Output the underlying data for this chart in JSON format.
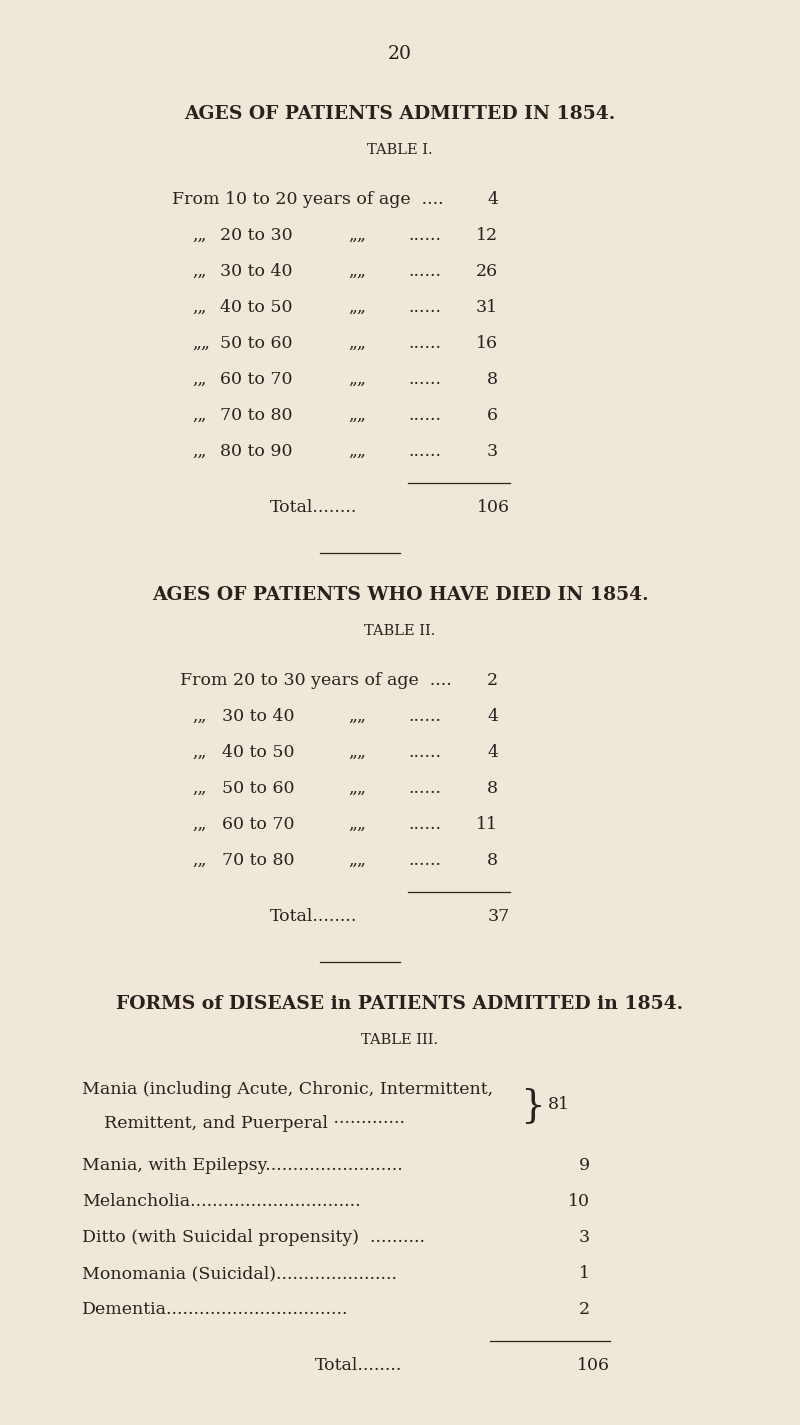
{
  "bg_color": "#ede8d8",
  "text_color": "#2e1f1f",
  "page_number": "20",
  "s1_title": "AGES OF PATIENTS ADMITTED IN 1854.",
  "s1_sub": "TABLE I.",
  "s1_row0": [
    "From 10 to 20 years of age  ....",
    "4"
  ],
  "s1_rows": [
    [
      ",„",
      "20 to 30",
      "„„",
      "......",
      "12"
    ],
    [
      ",„",
      "30 to 40",
      "„„",
      "......",
      "26"
    ],
    [
      ",„",
      "40 to 50",
      "„„",
      "......",
      "31"
    ],
    [
      "„„",
      "50 to 60",
      "„„",
      "......",
      "16"
    ],
    [
      ",„",
      "60 to 70",
      "„„",
      "......",
      "8"
    ],
    [
      ",„",
      "70 to 80",
      "„„",
      "......",
      "6"
    ],
    [
      ",„",
      "80 to 90",
      "„„",
      "......",
      "3"
    ]
  ],
  "s1_total": "106",
  "s2_title": "AGES OF PATIENTS WHO HAVE DIED IN 1854.",
  "s2_sub": "TABLE II.",
  "s2_row0": [
    "From 20 to 30 years of age  ....",
    "2"
  ],
  "s2_rows": [
    [
      ",„",
      "30 to 40",
      "„„",
      "......",
      "4"
    ],
    [
      ",„",
      "40 to 50",
      "„„",
      "......",
      "4"
    ],
    [
      ",„",
      "50 to 60",
      "„„",
      "......",
      "8"
    ],
    [
      ",„",
      "60 to 70",
      "„„",
      "......",
      "11"
    ],
    [
      ",„",
      "70 to 80",
      "„„",
      "......",
      "8"
    ]
  ],
  "s2_total": "37",
  "s3_title": "FORMS of DISEASE in PATIENTS ADMITTED in 1854.",
  "s3_sub": "TABLE III.",
  "s3_mania_line1": "Mania (including Acute, Chronic, Intermittent,",
  "s3_mania_line2": "    Remittent, and Puerperal ·············",
  "s3_mania_val": "81",
  "s3_rows": [
    [
      "Mania, with Epilepsy.........................",
      "9"
    ],
    [
      "Melancholia...............................",
      "10"
    ],
    [
      "Ditto (with Suicidal propensity)  ..........",
      "3"
    ],
    [
      "Monomania (Suicidal)......................",
      "1"
    ],
    [
      "Dementia.................................",
      "2"
    ]
  ],
  "s3_total": "106",
  "font_size_title": 13.5,
  "font_size_sub": 10.5,
  "font_size_body": 12.5,
  "font_size_total": 12.5
}
